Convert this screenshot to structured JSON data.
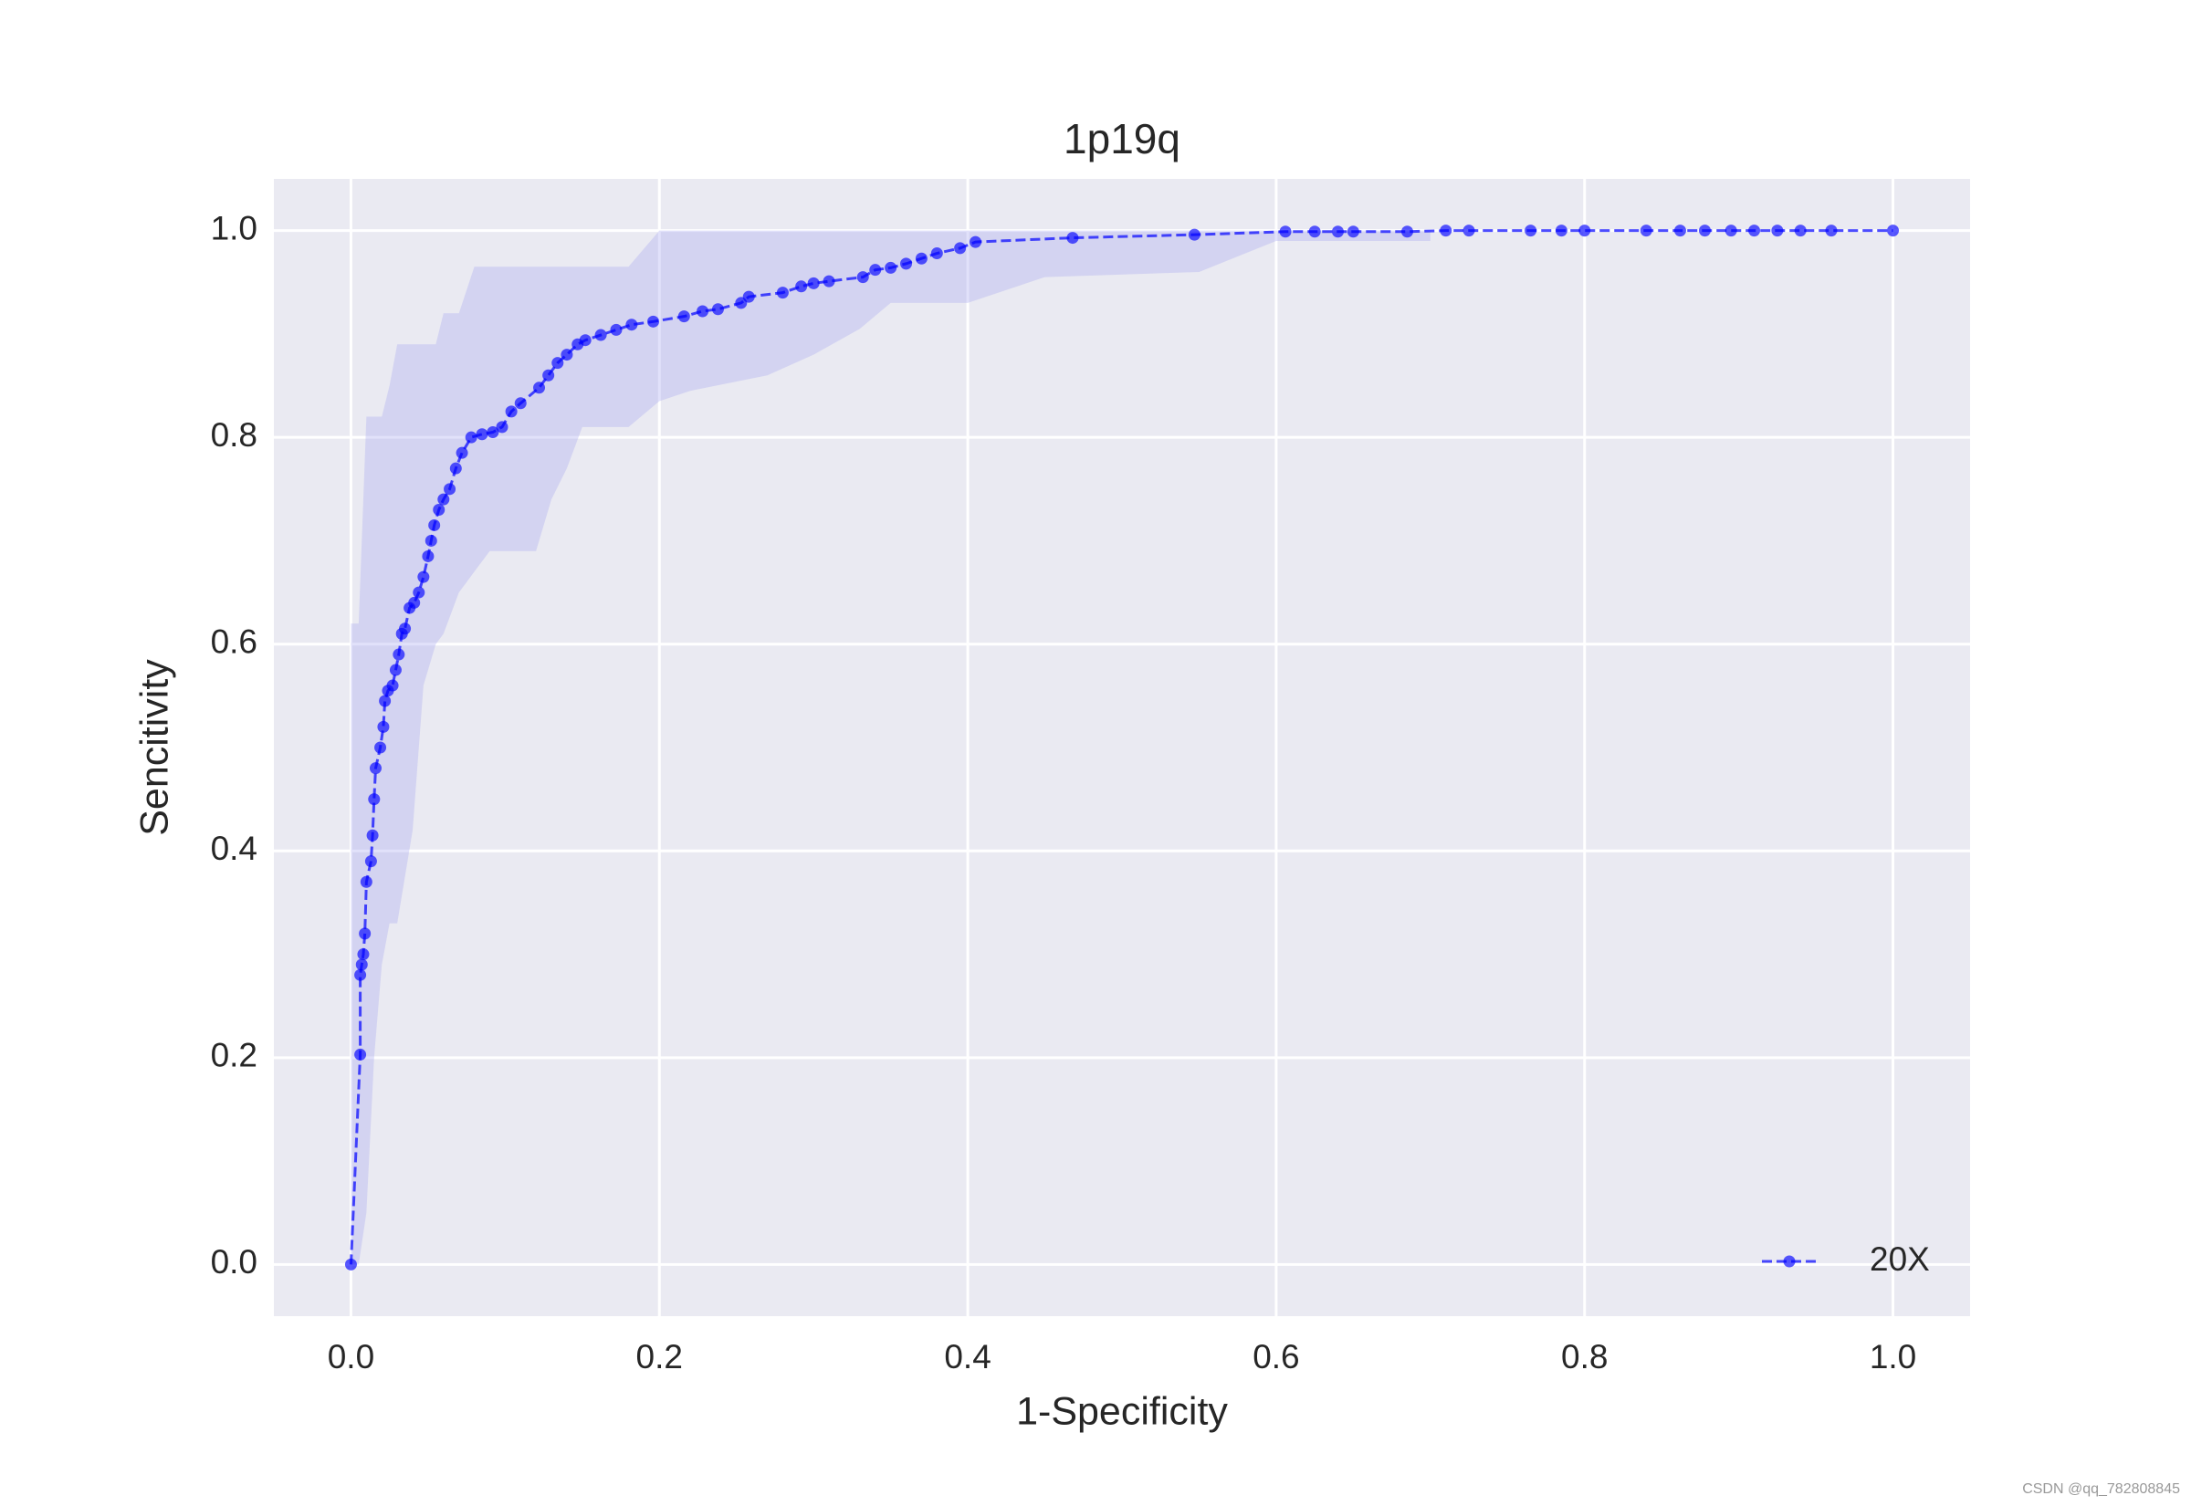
{
  "chart_data": {
    "type": "line",
    "title": "1p19q",
    "xlabel": "1-Specificity",
    "ylabel": "Sencitivity",
    "x": [
      0,
      0.006,
      0.006,
      0.007,
      0.008,
      0.009,
      0.01,
      0.013,
      0.014,
      0.015,
      0.016,
      0.019,
      0.021,
      0.022,
      0.024,
      0.027,
      0.029,
      0.031,
      0.033,
      0.035,
      0.038,
      0.041,
      0.044,
      0.047,
      0.05,
      0.052,
      0.054,
      0.057,
      0.06,
      0.064,
      0.068,
      0.072,
      0.078,
      0.085,
      0.092,
      0.098,
      0.104,
      0.11,
      0.122,
      0.128,
      0.134,
      0.14,
      0.147,
      0.152,
      0.162,
      0.172,
      0.182,
      0.196,
      0.216,
      0.228,
      0.238,
      0.253,
      0.258,
      0.28,
      0.292,
      0.3,
      0.31,
      0.332,
      0.34,
      0.35,
      0.36,
      0.37,
      0.38,
      0.395,
      0.405,
      0.468,
      0.547,
      0.606,
      0.625,
      0.64,
      0.65,
      0.685,
      0.71,
      0.725,
      0.765,
      0.785,
      0.8,
      0.84,
      0.862,
      0.878,
      0.895,
      0.91,
      0.925,
      0.94,
      0.96,
      1
    ],
    "series": [
      {
        "name": "20X",
        "color": "#0000ff",
        "values": [
          0,
          0.203,
          0.28,
          0.29,
          0.3,
          0.32,
          0.37,
          0.39,
          0.415,
          0.45,
          0.48,
          0.5,
          0.52,
          0.545,
          0.555,
          0.56,
          0.575,
          0.59,
          0.61,
          0.615,
          0.635,
          0.64,
          0.65,
          0.665,
          0.685,
          0.7,
          0.715,
          0.73,
          0.74,
          0.75,
          0.77,
          0.785,
          0.8,
          0.803,
          0.805,
          0.81,
          0.825,
          0.833,
          0.848,
          0.86,
          0.872,
          0.88,
          0.89,
          0.894,
          0.899,
          0.904,
          0.909,
          0.912,
          0.917,
          0.922,
          0.924,
          0.93,
          0.936,
          0.94,
          0.946,
          0.949,
          0.951,
          0.955,
          0.962,
          0.964,
          0.968,
          0.973,
          0.978,
          0.983,
          0.989,
          0.993,
          0.996,
          0.999,
          0.999,
          0.999,
          0.999,
          0.999,
          1,
          1,
          1,
          1,
          1,
          1,
          1,
          1,
          1,
          1,
          1,
          1,
          1,
          1
        ]
      }
    ],
    "band": {
      "color": "#aaaaf0",
      "x": [
        0,
        0.005,
        0.01,
        0.015,
        0.02,
        0.025,
        0.03,
        0.04,
        0.047,
        0.055,
        0.06,
        0.07,
        0.08,
        0.09,
        0.12,
        0.13,
        0.14,
        0.15,
        0.18,
        0.2,
        0.22,
        0.27,
        0.3,
        0.33,
        0.35,
        0.4,
        0.45,
        0.55,
        0.6,
        0.7
      ],
      "upper": [
        0.62,
        0.62,
        0.82,
        0.82,
        0.82,
        0.85,
        0.89,
        0.89,
        0.89,
        0.89,
        0.92,
        0.92,
        0.965,
        0.965,
        0.965,
        0.965,
        0.965,
        0.965,
        0.965,
        1,
        1,
        1,
        1,
        1,
        1,
        1,
        1,
        1,
        1,
        1
      ],
      "lower": [
        0,
        0,
        0.05,
        0.2,
        0.29,
        0.33,
        0.33,
        0.42,
        0.56,
        0.6,
        0.61,
        0.65,
        0.67,
        0.69,
        0.69,
        0.74,
        0.77,
        0.81,
        0.81,
        0.835,
        0.845,
        0.86,
        0.88,
        0.905,
        0.93,
        0.93,
        0.955,
        0.96,
        0.99,
        0.99
      ]
    },
    "xlim": [
      -0.05,
      1.05
    ],
    "ylim": [
      -0.05,
      1.05
    ],
    "xticks": [
      {
        "value": 0,
        "label": "0.0"
      },
      0.2,
      0.4,
      0.6,
      0.8,
      {
        "value": 1,
        "label": "1.0"
      }
    ],
    "yticks": [
      {
        "value": 0,
        "label": "0.0"
      },
      0.2,
      0.4,
      0.6,
      0.8,
      {
        "value": 1,
        "label": "1.0"
      }
    ],
    "grid": true,
    "legend": "lower right",
    "watermark": "CSDN @qq_782808845"
  }
}
